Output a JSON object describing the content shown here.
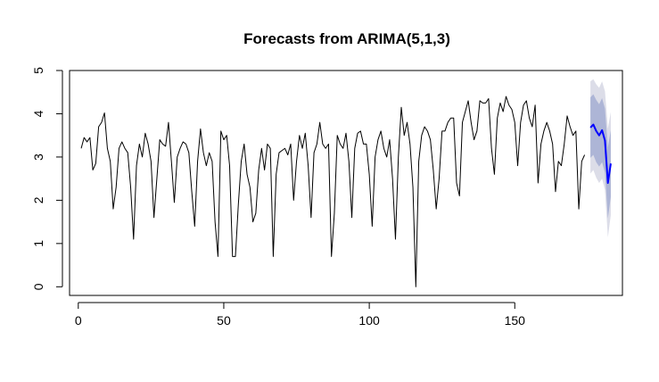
{
  "chart_data": {
    "type": "line",
    "title": "Forecasts from ARIMA(5,1,3)",
    "xlabel": "",
    "ylabel": "",
    "xlim": [
      -3,
      187
    ],
    "ylim": [
      -0.2,
      5.0
    ],
    "xticks": [
      0,
      50,
      100,
      150
    ],
    "yticks": [
      0,
      1,
      2,
      3,
      4,
      5
    ],
    "grid": false,
    "series": [
      {
        "role": "observed",
        "color": "#000000",
        "x_start": 1,
        "values": [
          3.2,
          3.45,
          3.35,
          3.45,
          2.7,
          2.85,
          3.7,
          3.8,
          4.02,
          3.2,
          2.9,
          1.8,
          2.3,
          3.2,
          3.35,
          3.2,
          3.1,
          2.3,
          1.1,
          2.8,
          3.3,
          3.0,
          3.55,
          3.3,
          2.9,
          1.6,
          2.5,
          3.4,
          3.3,
          3.25,
          3.8,
          2.9,
          1.95,
          3.0,
          3.2,
          3.35,
          3.3,
          3.1,
          2.2,
          1.4,
          2.9,
          3.65,
          3.1,
          2.8,
          3.1,
          2.9,
          1.5,
          0.7,
          3.6,
          3.4,
          3.5,
          2.8,
          0.7,
          0.7,
          1.9,
          2.9,
          3.3,
          2.6,
          2.3,
          1.5,
          1.7,
          2.7,
          3.2,
          2.7,
          3.3,
          3.2,
          0.7,
          2.6,
          3.1,
          3.15,
          3.2,
          3.05,
          3.3,
          2.0,
          2.9,
          3.5,
          3.2,
          3.55,
          2.8,
          1.6,
          3.1,
          3.3,
          3.8,
          3.3,
          3.2,
          3.3,
          0.7,
          1.7,
          3.5,
          3.3,
          3.2,
          3.55,
          2.9,
          1.6,
          3.2,
          3.55,
          3.6,
          3.3,
          3.3,
          2.6,
          1.4,
          3.0,
          3.4,
          3.6,
          3.2,
          3.0,
          3.4,
          2.5,
          1.1,
          3.0,
          4.15,
          3.5,
          3.8,
          3.3,
          2.3,
          0.0,
          2.9,
          3.5,
          3.7,
          3.6,
          3.4,
          2.7,
          1.8,
          2.5,
          3.6,
          3.6,
          3.8,
          3.9,
          3.9,
          2.4,
          2.1,
          3.8,
          4.05,
          4.3,
          3.8,
          3.4,
          3.6,
          4.3,
          4.25,
          4.25,
          4.35,
          3.2,
          2.6,
          3.9,
          4.25,
          4.05,
          4.4,
          4.2,
          4.1,
          3.8,
          2.8,
          3.8,
          4.2,
          4.3,
          3.9,
          3.7,
          4.2,
          2.4,
          3.3,
          3.6,
          3.8,
          3.6,
          3.3,
          2.2,
          2.9,
          2.8,
          3.3,
          3.95,
          3.7,
          3.5,
          3.6,
          1.8,
          2.9,
          3.05
        ]
      },
      {
        "role": "forecast",
        "color": "#0000ff",
        "x_start": 176,
        "values": [
          3.68,
          3.75,
          3.6,
          3.5,
          3.62,
          3.38,
          2.4,
          2.85
        ],
        "hi80": [
          4.38,
          4.45,
          4.32,
          4.22,
          4.36,
          4.12,
          3.22,
          3.62
        ],
        "lo80": [
          2.98,
          3.05,
          2.88,
          2.78,
          2.88,
          2.64,
          1.58,
          2.08
        ],
        "hi95": [
          4.75,
          4.8,
          4.68,
          4.6,
          4.75,
          4.52,
          3.66,
          4.04
        ],
        "lo95": [
          2.62,
          2.7,
          2.52,
          2.4,
          2.5,
          2.24,
          1.14,
          1.66
        ]
      }
    ],
    "interval_colors": {
      "hi80": "#adb5d6",
      "hi95": "#dcdde8"
    }
  }
}
